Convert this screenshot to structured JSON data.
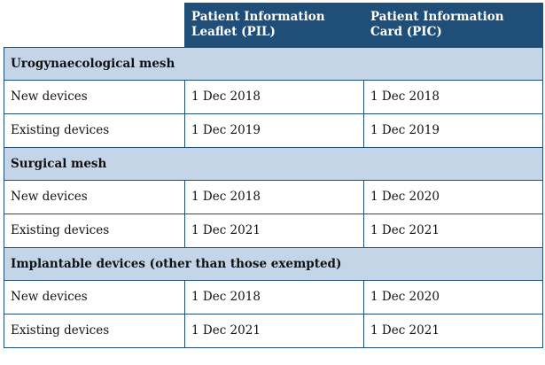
{
  "header": {
    "col_pil": "Patient Information Leaflet (PIL)",
    "col_pic": "Patient Information Card (PIC)"
  },
  "sections": [
    {
      "title": "Urogynaecological mesh",
      "rows": [
        {
          "label": "New devices",
          "pil": "1 Dec 2018",
          "pic": "1 Dec 2018"
        },
        {
          "label": "Existing devices",
          "pil": "1 Dec 2019",
          "pic": "1 Dec 2019"
        }
      ]
    },
    {
      "title": "Surgical mesh",
      "rows": [
        {
          "label": "New devices",
          "pil": "1 Dec 2018",
          "pic": "1 Dec 2020"
        },
        {
          "label": "Existing devices",
          "pil": "1 Dec 2021",
          "pic": "1 Dec 2021"
        }
      ]
    },
    {
      "title": "Implantable devices (other than those exempted)",
      "rows": [
        {
          "label": "New devices",
          "pil": "1 Dec 2018",
          "pic": "1 Dec 2020"
        },
        {
          "label": "Existing devices",
          "pil": "1 Dec 2021",
          "pic": "1 Dec 2021"
        }
      ]
    }
  ],
  "colors": {
    "header_bg": "#1f4e79",
    "header_text": "#ffffff",
    "group_bg": "#c5d5e8",
    "border": "#1f4e79"
  }
}
